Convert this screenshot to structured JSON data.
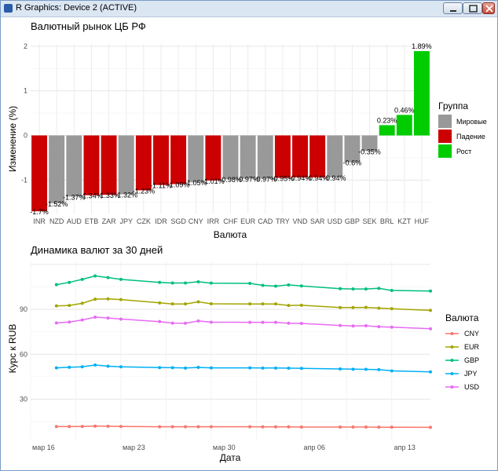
{
  "window": {
    "title": "R Graphics: Device 2 (ACTIVE)",
    "buttons": {
      "minimize": "minimize",
      "maximize": "maximize",
      "close": "close"
    }
  },
  "chart_data": [
    {
      "type": "bar",
      "title": "Валютный рынок ЦБ РФ",
      "xlabel": "Валюта",
      "ylabel": "Изменение (%)",
      "ylim": [
        -1.75,
        2.05
      ],
      "yticks": [
        -1,
        0,
        1,
        2
      ],
      "grid": true,
      "legend_title": "Группа",
      "legend_position": "right",
      "groups": [
        {
          "name": "Мировые",
          "color": "#999999"
        },
        {
          "name": "Падение",
          "color": "#cc0000"
        },
        {
          "name": "Рост",
          "color": "#00cc00"
        }
      ],
      "bars": [
        {
          "category": "INR",
          "value": -1.7,
          "label": "-1.7%",
          "group": "Падение"
        },
        {
          "category": "NZD",
          "value": -1.52,
          "label": "-1.52%",
          "group": "Мировые"
        },
        {
          "category": "AUD",
          "value": -1.37,
          "label": "-1.37%",
          "group": "Мировые"
        },
        {
          "category": "ETB",
          "value": -1.34,
          "label": "-1.34%",
          "group": "Падение"
        },
        {
          "category": "ZAR",
          "value": -1.33,
          "label": "-1.33%",
          "group": "Падение"
        },
        {
          "category": "JPY",
          "value": -1.32,
          "label": "-1.32%",
          "group": "Мировые"
        },
        {
          "category": "CZK",
          "value": -1.23,
          "label": "-1.23%",
          "group": "Падение"
        },
        {
          "category": "IDR",
          "value": -1.11,
          "label": "-1.11%",
          "group": "Падение"
        },
        {
          "category": "SGD",
          "value": -1.09,
          "label": "-1.09%",
          "group": "Падение"
        },
        {
          "category": "CNY",
          "value": -1.05,
          "label": "-1.05%",
          "group": "Мировые"
        },
        {
          "category": "IRR",
          "value": -1.01,
          "label": "-1.01%",
          "group": "Падение"
        },
        {
          "category": "CHF",
          "value": -0.98,
          "label": "-0.98%",
          "group": "Мировые"
        },
        {
          "category": "EUR",
          "value": -0.97,
          "label": "-0.97%",
          "group": "Мировые"
        },
        {
          "category": "CAD",
          "value": -0.97,
          "label": "-0.97%",
          "group": "Мировые"
        },
        {
          "category": "TRY",
          "value": -0.95,
          "label": "-0.95%",
          "group": "Падение"
        },
        {
          "category": "VND",
          "value": -0.94,
          "label": "-0.94%",
          "group": "Падение"
        },
        {
          "category": "SAR",
          "value": -0.94,
          "label": "-0.94%",
          "group": "Падение"
        },
        {
          "category": "USD",
          "value": -0.94,
          "label": "-0.94%",
          "group": "Мировые"
        },
        {
          "category": "GBP",
          "value": -0.6,
          "label": "-0.6%",
          "group": "Мировые"
        },
        {
          "category": "SEK",
          "value": -0.35,
          "label": "-0.35%",
          "group": "Мировые"
        },
        {
          "category": "BRL",
          "value": 0.23,
          "label": "0.23%",
          "group": "Рост"
        },
        {
          "category": "KZT",
          "value": 0.46,
          "label": "0.46%",
          "group": "Рост"
        },
        {
          "category": "HUF",
          "value": 1.89,
          "label": "1.89%",
          "group": "Рост"
        }
      ]
    },
    {
      "type": "line",
      "title": "Динамика валют за 30 дней",
      "xlabel": "Дата",
      "ylabel": "Курс к RUB",
      "ylim": [
        3,
        122
      ],
      "yticks": [
        30,
        60,
        90
      ],
      "xlim": [
        "2025-03-15",
        "2025-04-15"
      ],
      "xticks": [
        {
          "date": "2025-03-16",
          "label": "мар 16"
        },
        {
          "date": "2025-03-23",
          "label": "мар 23"
        },
        {
          "date": "2025-03-30",
          "label": "мар 30"
        },
        {
          "date": "2025-04-06",
          "label": "апр 06"
        },
        {
          "date": "2025-04-13",
          "label": "апр 13"
        }
      ],
      "grid": true,
      "legend_title": "Валюта",
      "legend_position": "right",
      "x": [
        "2025-03-17",
        "2025-03-18",
        "2025-03-19",
        "2025-03-20",
        "2025-03-21",
        "2025-03-22",
        "2025-03-25",
        "2025-03-26",
        "2025-03-27",
        "2025-03-28",
        "2025-03-29",
        "2025-04-01",
        "2025-04-02",
        "2025-04-03",
        "2025-04-04",
        "2025-04-05",
        "2025-04-08",
        "2025-04-09",
        "2025-04-10",
        "2025-04-11",
        "2025-04-12",
        "2025-04-15"
      ],
      "series": [
        {
          "name": "CNY",
          "color": "#f8766d",
          "values": [
            11.7,
            11.7,
            11.8,
            12.0,
            11.9,
            11.8,
            11.6,
            11.6,
            11.6,
            11.6,
            11.6,
            11.6,
            11.5,
            11.5,
            11.5,
            11.4,
            11.4,
            11.4,
            11.4,
            11.3,
            11.3,
            11.2
          ]
        },
        {
          "name": "EUR",
          "color": "#a3a500",
          "values": [
            92.3,
            92.6,
            94.0,
            96.8,
            97.0,
            96.5,
            94.3,
            93.6,
            93.6,
            95.0,
            93.7,
            93.6,
            93.6,
            93.6,
            92.6,
            92.7,
            91.2,
            91.2,
            91.3,
            90.8,
            90.4,
            89.3
          ]
        },
        {
          "name": "GBP",
          "color": "#00bf7d",
          "values": [
            106.5,
            108.0,
            110.0,
            112.3,
            111.2,
            110.0,
            108.0,
            107.6,
            107.6,
            108.4,
            107.5,
            107.3,
            106.0,
            105.5,
            106.3,
            105.6,
            103.8,
            103.6,
            103.6,
            104.0,
            102.6,
            102.2
          ]
        },
        {
          "name": "JPY",
          "color": "#00b0f6",
          "values": [
            50.9,
            51.3,
            51.6,
            52.8,
            52.0,
            51.6,
            51.1,
            51.0,
            50.8,
            51.2,
            50.9,
            50.9,
            50.8,
            50.8,
            50.7,
            50.6,
            50.2,
            50.0,
            49.9,
            49.7,
            48.9,
            48.2
          ]
        },
        {
          "name": "USD",
          "color": "#e76bf3",
          "values": [
            80.9,
            81.5,
            82.9,
            84.8,
            84.2,
            83.5,
            81.8,
            80.8,
            80.7,
            82.2,
            81.4,
            81.3,
            81.3,
            81.3,
            80.7,
            80.6,
            79.2,
            78.9,
            79.0,
            78.4,
            78.1,
            77.0
          ]
        }
      ]
    }
  ]
}
